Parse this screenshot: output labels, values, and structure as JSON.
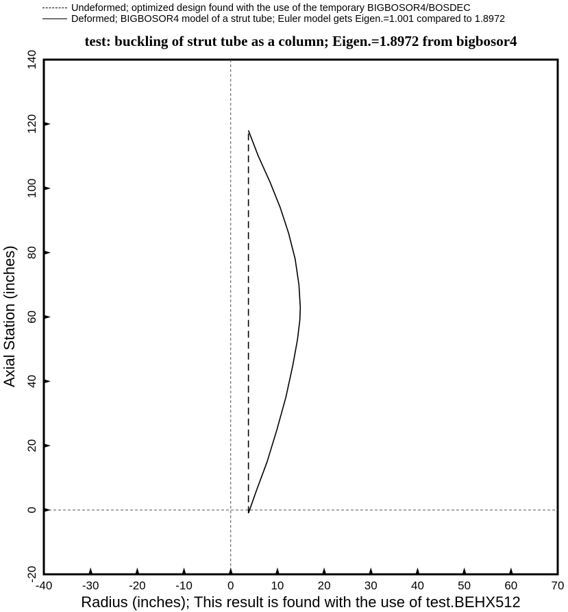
{
  "legend": [
    {
      "style": "dashed",
      "label": "Undeformed; optimized design found with the use of the temporary BIGBOSOR4/BOSDEC"
    },
    {
      "style": "solid",
      "label": "Deformed; BIGBOSOR4 model of a strut tube; Euler model gets Eigen.=1.001 compared to 1.8972"
    }
  ],
  "chart_data": {
    "type": "line",
    "title": "test: buckling of strut tube as a column; Eigen.=1.8972 from bigbosor4",
    "xlabel": "Radius (inches); This result is found with the use of test.BEHX512",
    "ylabel": "Axial Station (inches)",
    "xlim": [
      -40,
      70
    ],
    "ylim": [
      -20,
      140
    ],
    "xticks": [
      -40,
      -30,
      -20,
      -10,
      0,
      10,
      20,
      30,
      40,
      50,
      60,
      70
    ],
    "yticks": [
      -20,
      0,
      20,
      40,
      60,
      80,
      100,
      120,
      140
    ],
    "xtick_labels": [
      "-40",
      "-30",
      "-20",
      "-10",
      "0",
      "10",
      "20",
      "30",
      "40",
      "50",
      "60",
      "70"
    ],
    "ytick_labels": [
      "-20",
      "0",
      "20",
      "40",
      "60",
      "80",
      "100",
      "120",
      "140"
    ],
    "reference_lines": {
      "x": 0,
      "y": 0
    },
    "series": [
      {
        "name": "Undeformed",
        "style": "dashed",
        "x": [
          3.8,
          3.8
        ],
        "y": [
          -1,
          118
        ]
      },
      {
        "name": "Deformed",
        "style": "solid",
        "x": [
          3.8,
          5.5,
          7.8,
          9.9,
          11.8,
          13.3,
          14.3,
          14.8,
          14.9,
          14.6,
          13.8,
          12.4,
          10.6,
          8.4,
          5.9,
          3.8
        ],
        "y": [
          -1,
          6,
          15,
          25,
          35,
          45,
          53,
          59,
          63,
          70,
          78,
          86,
          94,
          102,
          110,
          118
        ]
      }
    ]
  }
}
